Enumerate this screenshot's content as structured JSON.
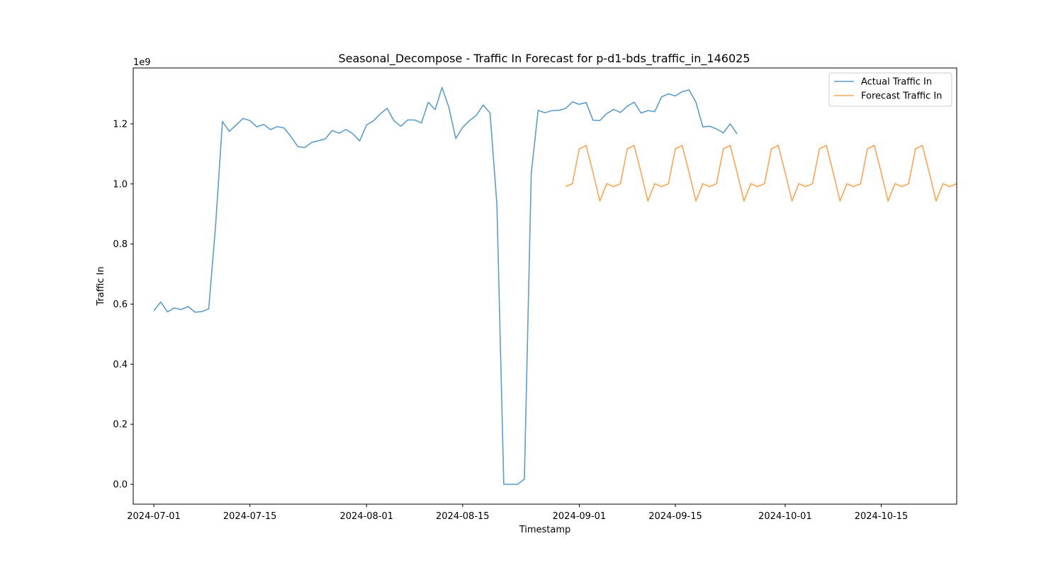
{
  "chart_data": {
    "type": "line",
    "title": "Seasonal_Decompose - Traffic In Forecast for p-d1-bds_traffic_in_146025",
    "xlabel": "Timestamp",
    "ylabel": "Traffic In",
    "y_offset_label": "1e9",
    "xlim": [
      "2024-06-28",
      "2024-10-26"
    ],
    "ylim": [
      -0.066,
      1.386
    ],
    "x_ticks": [
      "2024-07-01",
      "2024-07-15",
      "2024-08-01",
      "2024-08-15",
      "2024-09-01",
      "2024-09-15",
      "2024-10-01",
      "2024-10-15"
    ],
    "y_ticks": [
      "0.0",
      "0.2",
      "0.4",
      "0.6",
      "0.8",
      "1.0",
      "1.2"
    ],
    "legend_position": "upper right",
    "grid": false,
    "series": [
      {
        "name": "Actual Traffic In",
        "color": "#1f77b4",
        "start_date": "2024-07-01",
        "values": [
          0.578,
          0.607,
          0.574,
          0.587,
          0.582,
          0.592,
          0.573,
          0.575,
          0.584,
          0.86,
          1.208,
          1.175,
          1.196,
          1.218,
          1.211,
          1.19,
          1.198,
          1.181,
          1.191,
          1.186,
          1.157,
          1.124,
          1.121,
          1.138,
          1.144,
          1.15,
          1.178,
          1.169,
          1.181,
          1.167,
          1.143,
          1.196,
          1.21,
          1.233,
          1.252,
          1.21,
          1.192,
          1.213,
          1.213,
          1.203,
          1.272,
          1.247,
          1.321,
          1.255,
          1.151,
          1.188,
          1.211,
          1.228,
          1.263,
          1.236,
          0.93,
          0.0,
          0.0,
          0.0,
          0.017,
          1.033,
          1.245,
          1.237,
          1.244,
          1.245,
          1.251,
          1.273,
          1.265,
          1.271,
          1.212,
          1.211,
          1.234,
          1.248,
          1.238,
          1.259,
          1.272,
          1.236,
          1.244,
          1.241,
          1.29,
          1.3,
          1.293,
          1.307,
          1.313,
          1.272,
          1.19,
          1.192,
          1.183,
          1.17,
          1.2,
          1.166
        ]
      },
      {
        "name": "Forecast Traffic In",
        "color": "#ff7f0e",
        "start_date": "2024-08-30",
        "values": [
          0.991,
          1.001,
          1.117,
          1.128,
          1.038,
          0.943,
          1.001,
          0.991,
          1.001,
          1.117,
          1.128,
          1.038,
          0.943,
          1.001,
          0.991,
          1.001,
          1.117,
          1.128,
          1.038,
          0.943,
          1.001,
          0.991,
          1.001,
          1.117,
          1.128,
          1.038,
          0.943,
          1.001,
          0.991,
          1.001,
          1.117,
          1.128,
          1.038,
          0.943,
          1.001,
          0.991,
          1.001,
          1.117,
          1.128,
          1.038,
          0.943,
          1.001,
          0.991,
          1.001,
          1.117,
          1.128,
          1.038,
          0.943,
          1.001,
          0.991,
          1.001,
          1.117,
          1.128,
          1.038,
          0.943,
          1.001,
          0.991,
          1.001
        ]
      }
    ]
  }
}
